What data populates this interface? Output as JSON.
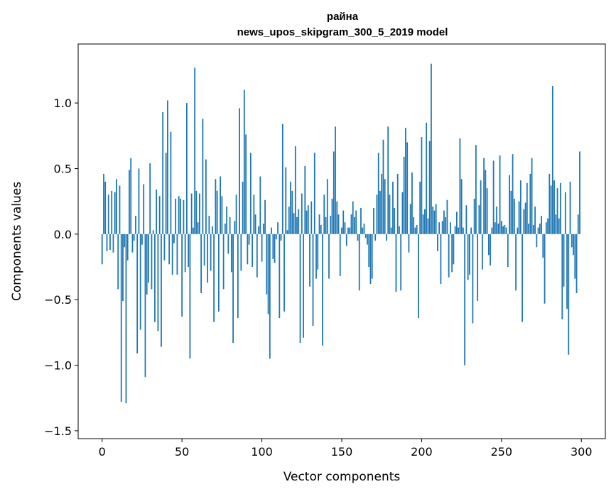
{
  "chart_data": {
    "type": "bar",
    "title": "райна",
    "subtitle": "news_upos_skipgram_300_5_2019 model",
    "xlabel": "Vector components",
    "ylabel": "Components values",
    "xlim": [
      -15,
      315
    ],
    "ylim": [
      -1.56,
      1.45
    ],
    "x_ticks": [
      0,
      50,
      100,
      150,
      200,
      250,
      300
    ],
    "y_ticks": [
      -1.5,
      -1.0,
      -0.5,
      0.0,
      0.5,
      1.0
    ],
    "x_tick_labels": [
      "0",
      "50",
      "100",
      "150",
      "200",
      "250",
      "300"
    ],
    "y_tick_labels": [
      "−1.5",
      "−1.0",
      "−0.5",
      "0.0",
      "0.5",
      "1.0"
    ],
    "grid": false,
    "bar_color": "#1f77b4",
    "values": [
      -0.23,
      0.46,
      0.4,
      -0.13,
      0.3,
      -0.12,
      0.33,
      -0.14,
      0.32,
      0.42,
      -0.42,
      0.37,
      -1.28,
      -0.51,
      -0.1,
      -1.29,
      -0.2,
      0.49,
      0.58,
      -0.14,
      -0.05,
      0.14,
      -0.91,
      0.5,
      -0.73,
      -0.08,
      0.38,
      -1.09,
      -0.46,
      -0.37,
      0.54,
      -0.42,
      0.03,
      -0.67,
      0.34,
      -0.74,
      0.29,
      -0.86,
      0.93,
      -0.2,
      0.62,
      1.02,
      -0.23,
      0.78,
      -0.31,
      -0.07,
      0.27,
      -0.31,
      0.29,
      0.27,
      -0.63,
      0.26,
      -0.29,
      1.0,
      -0.25,
      -0.95,
      0.31,
      0.05,
      1.27,
      0.33,
      0.09,
      0.31,
      -0.45,
      0.88,
      -0.24,
      0.57,
      -0.37,
      0.14,
      -0.28,
      0.06,
      -0.67,
      0.42,
      0.33,
      -0.59,
      0.44,
      0.29,
      -0.42,
      0.08,
      0.21,
      -0.15,
      0.13,
      -0.29,
      -0.83,
      0.1,
      0.3,
      -0.64,
      0.96,
      -0.28,
      0.4,
      1.1,
      0.76,
      -0.23,
      -0.08,
      0.62,
      -0.25,
      0.3,
      0.15,
      -0.33,
      0.06,
      0.44,
      -0.21,
      0.08,
      0.26,
      -0.46,
      -0.61,
      -0.95,
      0.05,
      -0.19,
      -0.22,
      -0.04,
      0.09,
      -0.64,
      -0.05,
      0.84,
      -0.59,
      0.51,
      0.03,
      0.21,
      0.4,
      0.33,
      0.16,
      0.67,
      0.13,
      0.19,
      -0.83,
      0.31,
      -0.79,
      0.52,
      0.18,
      0.22,
      -0.4,
      0.25,
      -0.7,
      0.62,
      -0.34,
      -0.27,
      0.15,
      0.07,
      -0.85,
      0.3,
      0.13,
      0.42,
      -0.34,
      0.14,
      0.27,
      0.63,
      0.82,
      0.25,
      0.15,
      -0.32,
      0.05,
      0.18,
      0.09,
      -0.09,
      0.05,
      0.05,
      0.15,
      0.25,
      0.13,
      0.18,
      -0.05,
      -0.43,
      0.2,
      0.05,
      0.08,
      -0.03,
      -0.08,
      -0.25,
      -0.38,
      -0.34,
      0.2,
      -0.05,
      0.3,
      0.62,
      0.33,
      0.46,
      0.72,
      0.42,
      -0.05,
      0.82,
      0.3,
      0.05,
      0.4,
      0.2,
      -0.44,
      0.46,
      0.06,
      -0.43,
      0.32,
      0.59,
      0.81,
      0.7,
      -0.14,
      0.23,
      0.47,
      0.13,
      0.05,
      0.07,
      -0.64,
      0.4,
      0.74,
      0.15,
      0.19,
      0.85,
      0.12,
      0.71,
      1.3,
      0.21,
      0.18,
      0.23,
      -0.13,
      0.09,
      -0.38,
      0.1,
      0.18,
      0.13,
      0.26,
      -0.33,
      0.09,
      -0.29,
      -0.23,
      0.06,
      0.17,
      0.05,
      0.73,
      0.42,
      0.05,
      -1.0,
      0.22,
      -0.35,
      -0.31,
      0.05,
      -0.68,
      0.27,
      0.68,
      -0.51,
      0.22,
      0.41,
      -0.27,
      0.58,
      0.49,
      0.35,
      -0.16,
      -0.24,
      0.05,
      0.56,
      0.09,
      0.21,
      0.08,
      0.6,
      0.1,
      0.06,
      0.07,
      0.05,
      -0.25,
      0.45,
      0.33,
      0.61,
      0.27,
      -0.43,
      0.05,
      0.25,
      0.41,
      -0.67,
      0.19,
      0.24,
      0.39,
      0.08,
      0.46,
      0.58,
      0.07,
      0.21,
      -0.1,
      0.05,
      0.08,
      0.14,
      -0.18,
      -0.53,
      0.09,
      0.12,
      0.46,
      0.37,
      1.13,
      0.41,
      0.15,
      0.35,
      0.12,
      0.39,
      -0.65,
      -0.4,
      0.32,
      -0.57,
      -0.92,
      0.4,
      -0.1,
      -0.16,
      -0.34,
      -0.45,
      0.15,
      0.63
    ]
  }
}
